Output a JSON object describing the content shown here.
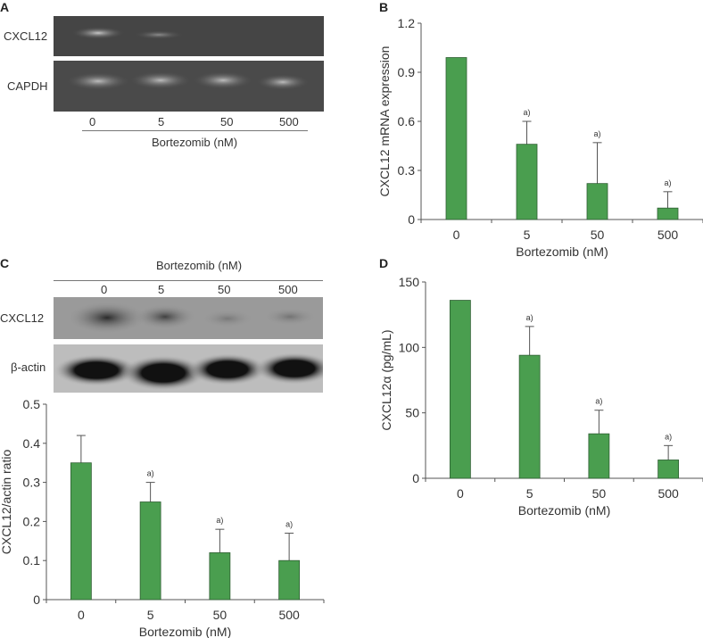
{
  "panels": {
    "A": {
      "letter": "A",
      "rows": [
        "CXCL12",
        "CAPDH"
      ],
      "lanes": [
        "0",
        "5",
        "50",
        "500"
      ],
      "xlabel": "Bortezomib (nM)"
    },
    "C_blot": {
      "letter": "C",
      "rows": [
        "CXCL12",
        "β-actin"
      ],
      "lanes": [
        "0",
        "5",
        "50",
        "500"
      ],
      "xlabel": "Bortezomib (nM)"
    },
    "B": {
      "letter": "B"
    },
    "D": {
      "letter": "D"
    }
  },
  "chart_data": [
    {
      "id": "B",
      "type": "bar",
      "categories": [
        "0",
        "5",
        "50",
        "500"
      ],
      "values": [
        0.99,
        0.46,
        0.22,
        0.07
      ],
      "error_upper": [
        null,
        0.6,
        0.47,
        0.17
      ],
      "annotations": [
        "",
        "a)",
        "a)",
        "a)"
      ],
      "xlabel": "Bortezomib (nM)",
      "ylabel": "CXCL12 mRNA expression",
      "ylim": [
        0,
        1.2
      ],
      "yticks": [
        "0",
        "0.3",
        "0.6",
        "0.9",
        "1.2"
      ],
      "grid": false,
      "color": "#4a9e4f"
    },
    {
      "id": "C",
      "type": "bar",
      "categories": [
        "0",
        "5",
        "50",
        "500"
      ],
      "values": [
        0.35,
        0.25,
        0.12,
        0.1
      ],
      "error_upper": [
        0.42,
        0.3,
        0.18,
        0.17
      ],
      "annotations": [
        "",
        "a)",
        "a)",
        "a)"
      ],
      "xlabel": "Bortezomib (nM)",
      "ylabel": "CXCL12/actin ratio",
      "ylim": [
        0,
        0.5
      ],
      "yticks": [
        "0",
        "0.1",
        "0.2",
        "0.3",
        "0.4",
        "0.5"
      ],
      "grid": false,
      "color": "#4a9e4f"
    },
    {
      "id": "D",
      "type": "bar",
      "categories": [
        "0",
        "5",
        "50",
        "500"
      ],
      "values": [
        136,
        94,
        34,
        14
      ],
      "error_upper": [
        null,
        116,
        52,
        25
      ],
      "annotations": [
        "",
        "a)",
        "a)",
        "a)"
      ],
      "xlabel": "Bortezomib (nM)",
      "ylabel": "CXCL12α (pg/mL)",
      "ylim": [
        0,
        150
      ],
      "yticks": [
        "0",
        "50",
        "100",
        "150"
      ],
      "grid": false,
      "color": "#4a9e4f"
    }
  ]
}
